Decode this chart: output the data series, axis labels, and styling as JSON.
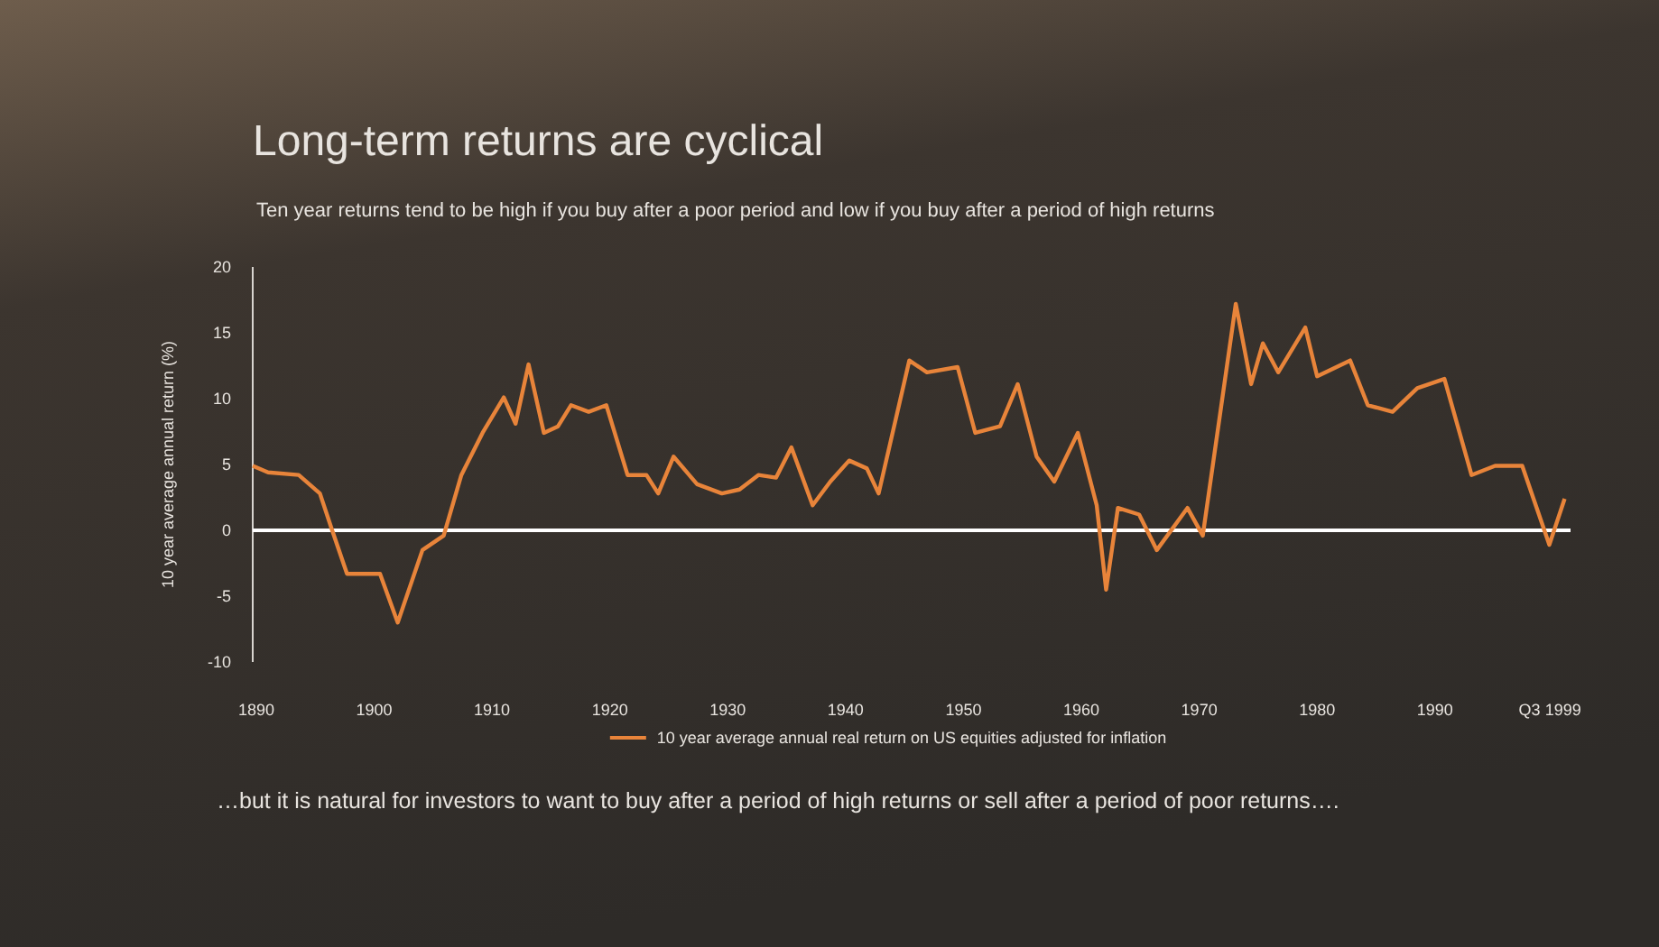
{
  "chart_data": {
    "type": "line",
    "title": "Long-term returns are cyclical",
    "subtitle": "Ten year returns tend to be high if you buy after a poor period and low if you buy after a period of high returns",
    "ylabel": "10 year average annual return (%)",
    "annotations": [
      "…but it is natural for investors to want to buy after a period of high returns or sell after a period of poor returns…."
    ],
    "series": [
      {
        "name": "10 year average annual real return on US equities adjusted for inflation",
        "color": "#e8843a",
        "x": [
          1889.7,
          1891.0,
          1893.6,
          1895.4,
          1896.4,
          1897.7,
          1900.5,
          1902.0,
          1904.1,
          1905.9,
          1907.4,
          1909.2,
          1911.0,
          1912.0,
          1913.1,
          1914.4,
          1915.6,
          1916.7,
          1918.2,
          1919.7,
          1921.5,
          1923.1,
          1924.1,
          1925.4,
          1927.4,
          1929.5,
          1931.0,
          1932.6,
          1934.1,
          1935.4,
          1937.2,
          1938.7,
          1940.3,
          1941.8,
          1942.8,
          1945.4,
          1946.9,
          1949.5,
          1951.0,
          1953.1,
          1954.6,
          1956.2,
          1957.7,
          1959.7,
          1961.3,
          1962.1,
          1963.1,
          1964.9,
          1966.4,
          1969.0,
          1970.3,
          1973.1,
          1974.4,
          1975.4,
          1976.7,
          1979.0,
          1980.0,
          1982.8,
          1984.3,
          1986.4,
          1988.5,
          1990.8,
          1993.1,
          1995.1,
          1997.4,
          1999.7,
          2001.0
        ],
        "values": [
          4.9,
          4.4,
          4.2,
          2.8,
          0.1,
          -3.3,
          -3.3,
          -7.0,
          -1.5,
          -0.4,
          4.2,
          7.4,
          10.1,
          8.1,
          12.6,
          7.4,
          7.9,
          9.5,
          9.0,
          9.5,
          4.2,
          4.2,
          2.8,
          5.6,
          3.5,
          2.8,
          3.1,
          4.2,
          4.0,
          6.3,
          1.9,
          3.7,
          5.3,
          4.7,
          2.8,
          12.9,
          12.0,
          12.4,
          7.4,
          7.9,
          11.1,
          5.6,
          3.7,
          7.4,
          1.9,
          -4.5,
          1.7,
          1.2,
          -1.5,
          1.7,
          -0.4,
          17.2,
          11.1,
          14.2,
          12.0,
          15.4,
          11.7,
          12.9,
          9.5,
          9.0,
          10.8,
          11.5,
          4.2,
          4.9,
          4.9,
          -1.1,
          2.4
        ]
      }
    ],
    "xlim": [
      1889.7,
      2001.5
    ],
    "xticks": [
      1890,
      1900,
      1910,
      1920,
      1930,
      1940,
      1950,
      1960,
      1970,
      1980,
      1990,
      {
        "value": 1999.75,
        "label": "Q3 1999"
      }
    ],
    "ylim": [
      -10,
      20
    ],
    "yticks": [
      -10,
      -5,
      0,
      5,
      10,
      15,
      20
    ],
    "ref_lines": [
      {
        "axis": "y",
        "value": 0,
        "color": "#ffffff"
      }
    ],
    "legend": "bottom",
    "marker": "none",
    "line_style": "solid"
  }
}
